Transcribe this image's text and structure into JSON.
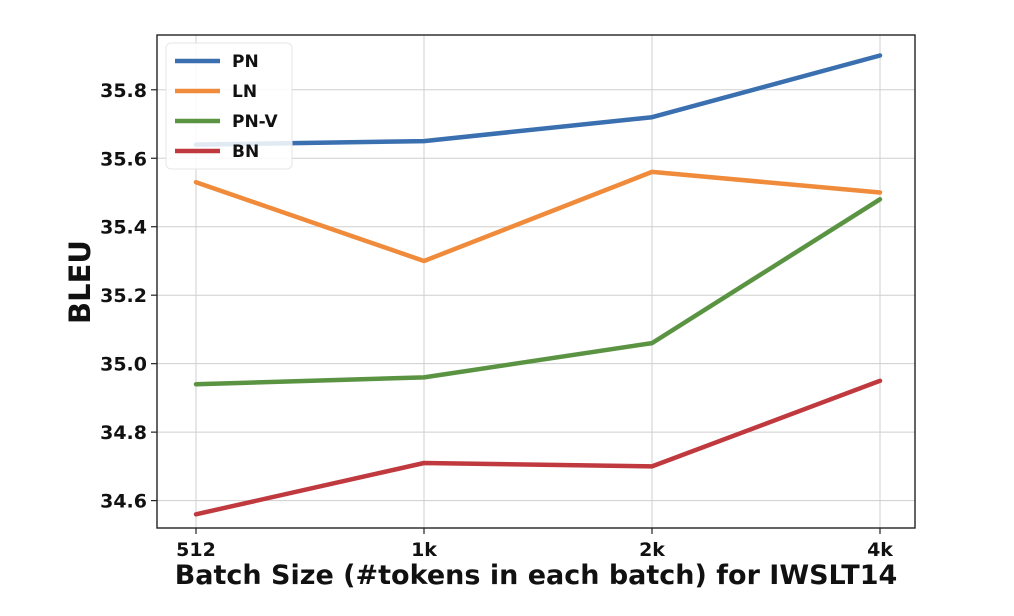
{
  "chart_data": {
    "type": "line",
    "categories": [
      "512",
      "1k",
      "2k",
      "4k"
    ],
    "xlabel": "Batch Size (#tokens in each batch) for IWSLT14",
    "ylabel": "BLEU",
    "ylim": [
      34.52,
      35.96
    ],
    "yticks": [
      "34.6",
      "34.8",
      "35.0",
      "35.2",
      "35.4",
      "35.6",
      "35.8"
    ],
    "grid": true,
    "legend_position": "upper-left",
    "series": [
      {
        "name": "PN",
        "color": "#3a6fb0",
        "values": [
          35.64,
          35.65,
          35.72,
          35.9
        ]
      },
      {
        "name": "LN",
        "color": "#ef8b3b",
        "values": [
          35.53,
          35.3,
          35.56,
          35.5
        ]
      },
      {
        "name": "PN-V",
        "color": "#5a9443",
        "values": [
          34.94,
          34.96,
          35.06,
          35.48
        ]
      },
      {
        "name": "BN",
        "color": "#c0393e",
        "values": [
          34.56,
          34.71,
          34.7,
          34.95
        ]
      }
    ]
  }
}
